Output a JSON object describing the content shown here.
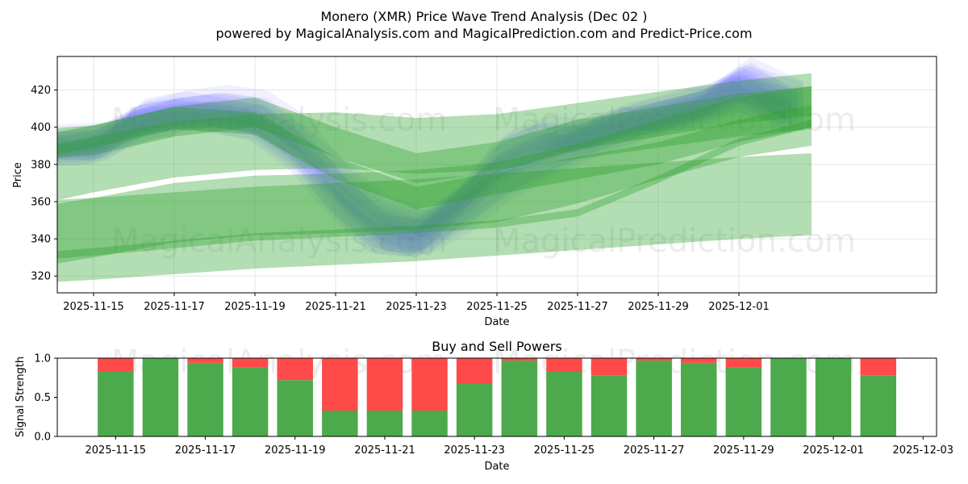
{
  "chart_data": [
    {
      "type": "area",
      "title": "Monero (XMR) Price Wave Trend Analysis (Dec 02 )",
      "subtitle": "powered by MagicalAnalysis.com and MagicalPrediction.com and Predict-Price.com",
      "xlabel": "Date",
      "ylabel": "Price",
      "x_ticks": [
        "2025-11-15",
        "2025-11-17",
        "2025-11-19",
        "2025-11-21",
        "2025-11-23",
        "2025-11-25",
        "2025-11-27",
        "2025-11-29",
        "2025-12-01"
      ],
      "y_ticks": [
        320,
        340,
        360,
        380,
        400,
        420
      ],
      "ylim": [
        311,
        438
      ],
      "xlim": [
        -0.9,
        20.9
      ],
      "x_unit": "days since 2025-11-15",
      "grid": true,
      "watermarks": [
        "MagicalAnalysis.com",
        "MagicalPrediction.com"
      ],
      "price_waves": [
        {
          "name": "wave-1",
          "x": [
            -1.2,
            0,
            1,
            2,
            3,
            4,
            5,
            6,
            7,
            8,
            9,
            10,
            11,
            12,
            13,
            14,
            15,
            16,
            17.3
          ],
          "center": [
            390,
            390,
            400,
            406,
            409,
            406,
            392,
            364,
            345,
            340,
            352,
            368,
            380,
            390,
            398,
            405,
            410,
            418,
            410
          ],
          "halfwidth": [
            7,
            8,
            9,
            9,
            9,
            9,
            9,
            10,
            10,
            10,
            10,
            9,
            9,
            9,
            9,
            9,
            9,
            10,
            9
          ]
        },
        {
          "name": "wave-2",
          "x": [
            -1.2,
            0,
            1,
            2,
            3,
            4,
            5,
            6,
            7,
            8,
            9,
            10,
            11,
            12,
            13,
            14,
            15,
            16,
            17.3
          ],
          "center": [
            385,
            386,
            403,
            408,
            404,
            400,
            384,
            360,
            340,
            338,
            358,
            385,
            395,
            393,
            402,
            406,
            412,
            422,
            404
          ],
          "halfwidth": [
            6,
            6,
            8,
            7,
            7,
            7,
            7,
            8,
            8,
            8,
            8,
            8,
            7,
            7,
            7,
            7,
            7,
            8,
            8
          ]
        },
        {
          "name": "wave-3",
          "x": [
            -1.2,
            0,
            1,
            2,
            3,
            4,
            5,
            6,
            7,
            8,
            9,
            10,
            11,
            12,
            13,
            14,
            15,
            16,
            17.3
          ],
          "center": [
            388,
            392,
            402,
            405,
            407,
            404,
            388,
            370,
            352,
            345,
            360,
            378,
            388,
            395,
            400,
            404,
            410,
            424,
            412
          ],
          "halfwidth": [
            5,
            6,
            7,
            7,
            7,
            7,
            7,
            7,
            7,
            7,
            7,
            7,
            7,
            7,
            7,
            7,
            7,
            9,
            8
          ]
        }
      ],
      "trend_bands": [
        {
          "name": "trend-high",
          "x": [
            -1.7,
            0,
            2,
            4,
            6,
            8,
            10,
            12,
            14,
            16,
            17.8
          ],
          "center": [
            390,
            393,
            403,
            408,
            392,
            378,
            384,
            396,
            403,
            410,
            414
          ],
          "halfwidth": [
            8,
            8,
            8,
            8,
            8,
            8,
            8,
            8,
            8,
            8,
            8
          ]
        },
        {
          "name": "trend-mid-high",
          "x": [
            -1.7,
            0,
            2,
            4,
            6,
            8,
            10,
            12,
            14,
            16,
            17.8
          ],
          "center": [
            372,
            380,
            388,
            392,
            393,
            390,
            392,
            398,
            404,
            410,
            414
          ],
          "halfwidth": [
            15,
            15,
            15,
            15,
            15,
            15,
            15,
            15,
            15,
            15,
            15
          ]
        },
        {
          "name": "trend-mid",
          "x": [
            -1.7,
            0,
            2,
            4,
            6,
            8,
            10,
            12,
            14,
            16,
            17.8
          ],
          "center": [
            388,
            395,
            405,
            402,
            378,
            362,
            370,
            378,
            386,
            398,
            406
          ],
          "halfwidth": [
            6,
            6,
            6,
            6,
            6,
            6,
            6,
            6,
            6,
            6,
            6
          ]
        },
        {
          "name": "trend-low-mid",
          "x": [
            -1.7,
            0,
            2,
            4,
            6,
            8,
            10,
            12,
            14,
            16,
            17.8
          ],
          "center": [
            340,
            346,
            354,
            358,
            359,
            361,
            365,
            375,
            388,
            400,
            406
          ],
          "halfwidth": [
            16,
            16,
            16,
            16,
            16,
            16,
            16,
            16,
            16,
            16,
            16
          ]
        },
        {
          "name": "trend-low",
          "x": [
            -1.7,
            0,
            2,
            4,
            6,
            8,
            10,
            12,
            14,
            16,
            17.8
          ],
          "center": [
            330,
            333,
            337,
            341,
            343,
            345,
            348,
            354,
            372,
            392,
            402
          ],
          "halfwidth": [
            2,
            2,
            2,
            2,
            2,
            2,
            2,
            2,
            2,
            2,
            2
          ]
        },
        {
          "name": "trend-bottom",
          "x": [
            -1.7,
            0,
            2,
            4,
            6,
            8,
            10,
            12,
            14,
            16,
            17.8
          ],
          "center": [
            338,
            340,
            343,
            346,
            348,
            350,
            353,
            356,
            359,
            362,
            364
          ],
          "halfwidth": [
            22,
            22,
            22,
            22,
            22,
            22,
            22,
            22,
            22,
            22,
            22
          ]
        }
      ]
    },
    {
      "type": "bar",
      "title": "Buy and Sell Powers",
      "xlabel": "Date",
      "ylabel": "Signal Strength",
      "x_ticks": [
        "2025-11-15",
        "2025-11-17",
        "2025-11-19",
        "2025-11-21",
        "2025-11-23",
        "2025-11-25",
        "2025-11-27",
        "2025-11-29",
        "2025-12-01",
        "2025-12-03"
      ],
      "y_ticks": [
        "0.0",
        "0.5",
        "1.0"
      ],
      "ylim": [
        0,
        1
      ],
      "xlim": [
        -1.3,
        18.3
      ],
      "x_unit": "days since 2025-11-15",
      "grid": false,
      "watermarks": [
        "MagicalAnalysis.com",
        "MagicalPrediction.com"
      ],
      "categories": [
        "2025-11-15",
        "2025-11-16",
        "2025-11-17",
        "2025-11-18",
        "2025-11-19",
        "2025-11-20",
        "2025-11-21",
        "2025-11-22",
        "2025-11-23",
        "2025-11-24",
        "2025-11-25",
        "2025-11-26",
        "2025-11-27",
        "2025-11-28",
        "2025-11-29",
        "2025-11-30",
        "2025-12-01",
        "2025-12-02"
      ],
      "series": [
        {
          "name": "Buy",
          "color": "#4caa4c",
          "values": [
            0.83,
            1.0,
            0.94,
            0.88,
            0.72,
            0.33,
            0.33,
            0.33,
            0.67,
            0.97,
            0.83,
            0.78,
            0.97,
            0.94,
            0.88,
            1.0,
            1.0,
            0.78
          ]
        },
        {
          "name": "Sell",
          "color": "#ff4a4a",
          "values": [
            0.17,
            0.0,
            0.06,
            0.12,
            0.28,
            0.67,
            0.67,
            0.67,
            0.33,
            0.03,
            0.17,
            0.22,
            0.03,
            0.06,
            0.12,
            0.0,
            0.0,
            0.22
          ]
        }
      ]
    }
  ],
  "colors": {
    "wave": "#5b5bff",
    "trend": "#2ca02c",
    "buy": "#4caa4c",
    "sell": "#ff4a4a",
    "grid": "#e6e6e6"
  }
}
